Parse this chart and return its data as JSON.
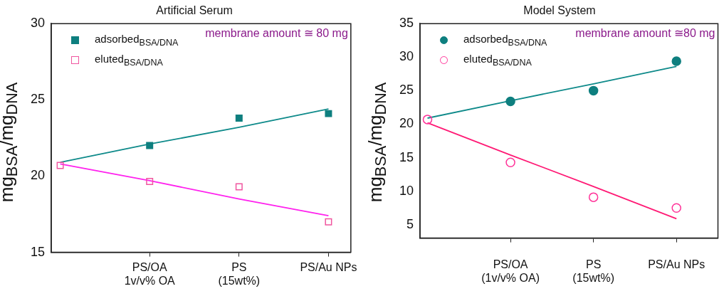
{
  "chart_data": [
    {
      "type": "scatter",
      "title": "Artificial Serum",
      "ylabel": "mg$_{BSA}$/mg$_{DNA}$",
      "categories": [
        null,
        "PS/OA\n1v/v% OA",
        "PS\n(15wt%)",
        "PS/Au NPs"
      ],
      "ylim": [
        15,
        30
      ],
      "yticks": [
        15,
        20,
        25,
        30
      ],
      "grid": false,
      "legend": "top left",
      "annotations": [
        "membrane amount ≅ 80 mg"
      ],
      "series": [
        {
          "name": "adsorbed$_{BSA/DNA}$",
          "color": "#0e7f7f",
          "marker": "square",
          "values": [
            null,
            22.0,
            23.8,
            24.1
          ]
        },
        {
          "name": "eluted$_{BSA/DNA}$",
          "color": "#f0559f",
          "marker": "square",
          "values": [
            20.7,
            19.65,
            19.3,
            17.0
          ]
        },
        {
          "type": "line",
          "color": "#0e8a8a",
          "marker": "none",
          "values": [
            20.9,
            22.1,
            23.2,
            24.4
          ]
        },
        {
          "type": "line",
          "color": "#ff22ee",
          "marker": "none",
          "values": [
            20.8,
            19.7,
            18.5,
            17.4
          ]
        }
      ]
    },
    {
      "type": "scatter",
      "title": "Model System",
      "ylabel": "mg$_{BSA}$/mg$_{DNA}$",
      "categories": [
        null,
        "PS/OA\n(1v/v% OA)",
        "PS\n(15wt%)",
        "PS/Au NPs"
      ],
      "ylim": [
        3,
        35
      ],
      "yticks": [
        5,
        10,
        15,
        20,
        25,
        30,
        35
      ],
      "grid": false,
      "legend": "top left",
      "annotations": [
        "membrane amount ≅80 mg"
      ],
      "series": [
        {
          "name": "adsorbed$_{BSA/DNA}$",
          "color": "#0e7f7f",
          "marker": "circle",
          "values": [
            null,
            23.4,
            25.0,
            29.4
          ]
        },
        {
          "name": "eluted$_{BSA/DNA}$",
          "color": "#ff3399",
          "marker": "circle",
          "values": [
            20.7,
            14.3,
            9.1,
            7.5
          ]
        },
        {
          "type": "line",
          "color": "#0e8a8a",
          "marker": "none",
          "values": [
            20.9,
            23.5,
            26.0,
            28.6
          ]
        },
        {
          "type": "line",
          "color": "#ff1a75",
          "marker": "none",
          "values": [
            20.2,
            15.4,
            10.7,
            5.9
          ]
        }
      ]
    }
  ]
}
